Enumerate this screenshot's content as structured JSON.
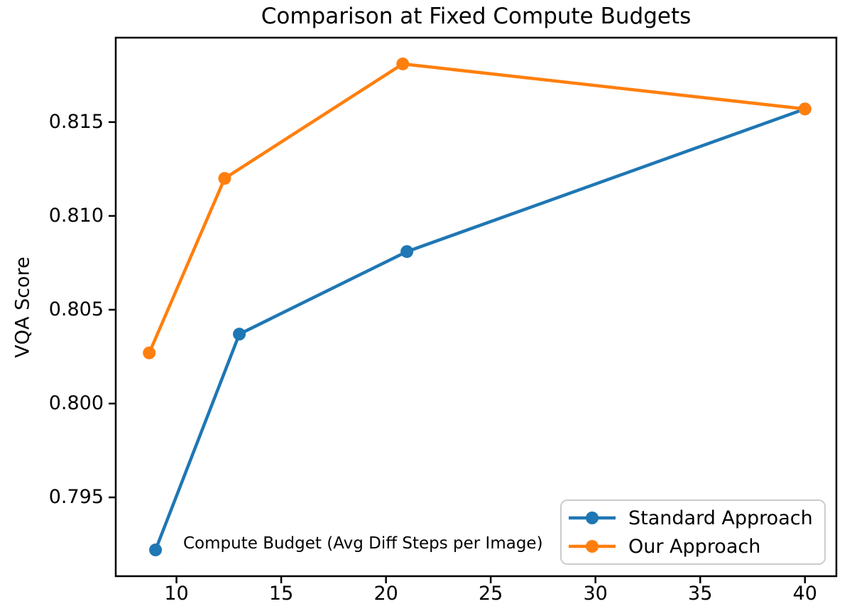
{
  "figure": {
    "background": "#ffffff",
    "text_color": "#000000",
    "spine_color": "#000000"
  },
  "chart_data": {
    "type": "line",
    "title": "Comparison at Fixed Compute Budgets",
    "xlabel": "Compute Budget (Avg Diff Steps per Image)",
    "xlabel_placement": "text inside plot area, lower left",
    "ylabel": "VQA Score",
    "xlim": [
      7.1,
      41.5
    ],
    "ylim": [
      0.7908,
      0.8195
    ],
    "x_ticks": [
      10,
      15,
      20,
      25,
      30,
      35,
      40
    ],
    "x_tick_labels": [
      "10",
      "15",
      "20",
      "25",
      "30",
      "35",
      "40"
    ],
    "y_ticks": [
      0.795,
      0.8,
      0.805,
      0.81,
      0.815
    ],
    "y_tick_labels": [
      "0.795",
      "0.800",
      "0.805",
      "0.810",
      "0.815"
    ],
    "grid": false,
    "legend_position": "lower right",
    "series": [
      {
        "name": "Standard Approach",
        "color": "#1f77b4",
        "marker": "circle",
        "x": [
          9,
          13,
          21,
          40
        ],
        "y": [
          0.7922,
          0.8037,
          0.8081,
          0.8157
        ]
      },
      {
        "name": "Our Approach",
        "color": "#ff7f0e",
        "marker": "circle",
        "x": [
          8.7,
          12.3,
          20.8,
          40
        ],
        "y": [
          0.8027,
          0.812,
          0.8181,
          0.8157
        ]
      }
    ]
  }
}
